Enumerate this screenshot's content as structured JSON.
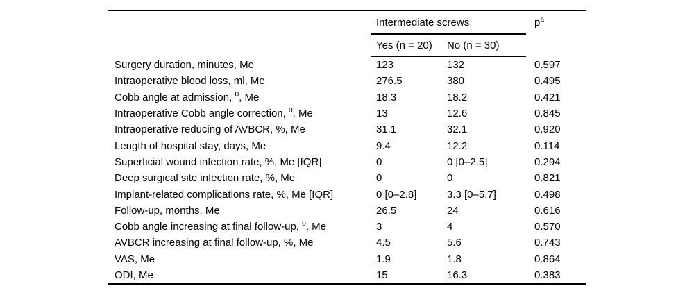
{
  "colors": {
    "background": "#ffffff",
    "text": "#000000",
    "rule": "#000000"
  },
  "table": {
    "header": {
      "group_label": "Intermediate screws",
      "p_label": "p^{a}",
      "col_yes": "Yes (n = 20)",
      "col_no": "No (n = 30)"
    },
    "rows": [
      {
        "label": "Surgery duration, minutes, Me",
        "yes": "123",
        "no": "132",
        "p": "0.597"
      },
      {
        "label": "Intraoperative blood loss, ml, Me",
        "yes": "276.5",
        "no": "380",
        "p": "0.495"
      },
      {
        "label": "Cobb angle at admission, ^{0}, Me",
        "yes": "18.3",
        "no": "18.2",
        "p": "0.421"
      },
      {
        "label": "Intraoperative Cobb angle correction, ^{0}, Me",
        "yes": "13",
        "no": "12.6",
        "p": "0.845"
      },
      {
        "label": "Intraoperative reducing of AVBCR, %, Me",
        "yes": "31.1",
        "no": "32.1",
        "p": "0.920"
      },
      {
        "label": "Length of hospital stay, days, Me",
        "yes": "9.4",
        "no": "12.2",
        "p": "0.114"
      },
      {
        "label": "Superficial wound infection rate, %, Me [IQR]",
        "yes": "0",
        "no": "0 [0–2.5]",
        "p": "0.294"
      },
      {
        "label": "Deep surgical site infection rate, %, Me",
        "yes": "0",
        "no": "0",
        "p": "0.821"
      },
      {
        "label": "Implant-related complications rate, %, Me [IQR]",
        "yes": "0 [0–2.8]",
        "no": "3.3 [0–5.7]",
        "p": "0.498"
      },
      {
        "label": "Follow-up, months, Me",
        "yes": "26.5",
        "no": "24",
        "p": "0.616"
      },
      {
        "label": "Cobb angle increasing at final follow-up, ^{0}, Me",
        "yes": "3",
        "no": "4",
        "p": "0.570"
      },
      {
        "label": "AVBCR increasing at final follow-up, %, Me",
        "yes": "4.5",
        "no": "5.6",
        "p": "0.743"
      },
      {
        "label": "VAS, Me",
        "yes": "1.9",
        "no": "1.8",
        "p": "0.864"
      },
      {
        "label": "ODI, Me",
        "yes": "15",
        "no": "16.3",
        "p": "0.383"
      }
    ]
  }
}
